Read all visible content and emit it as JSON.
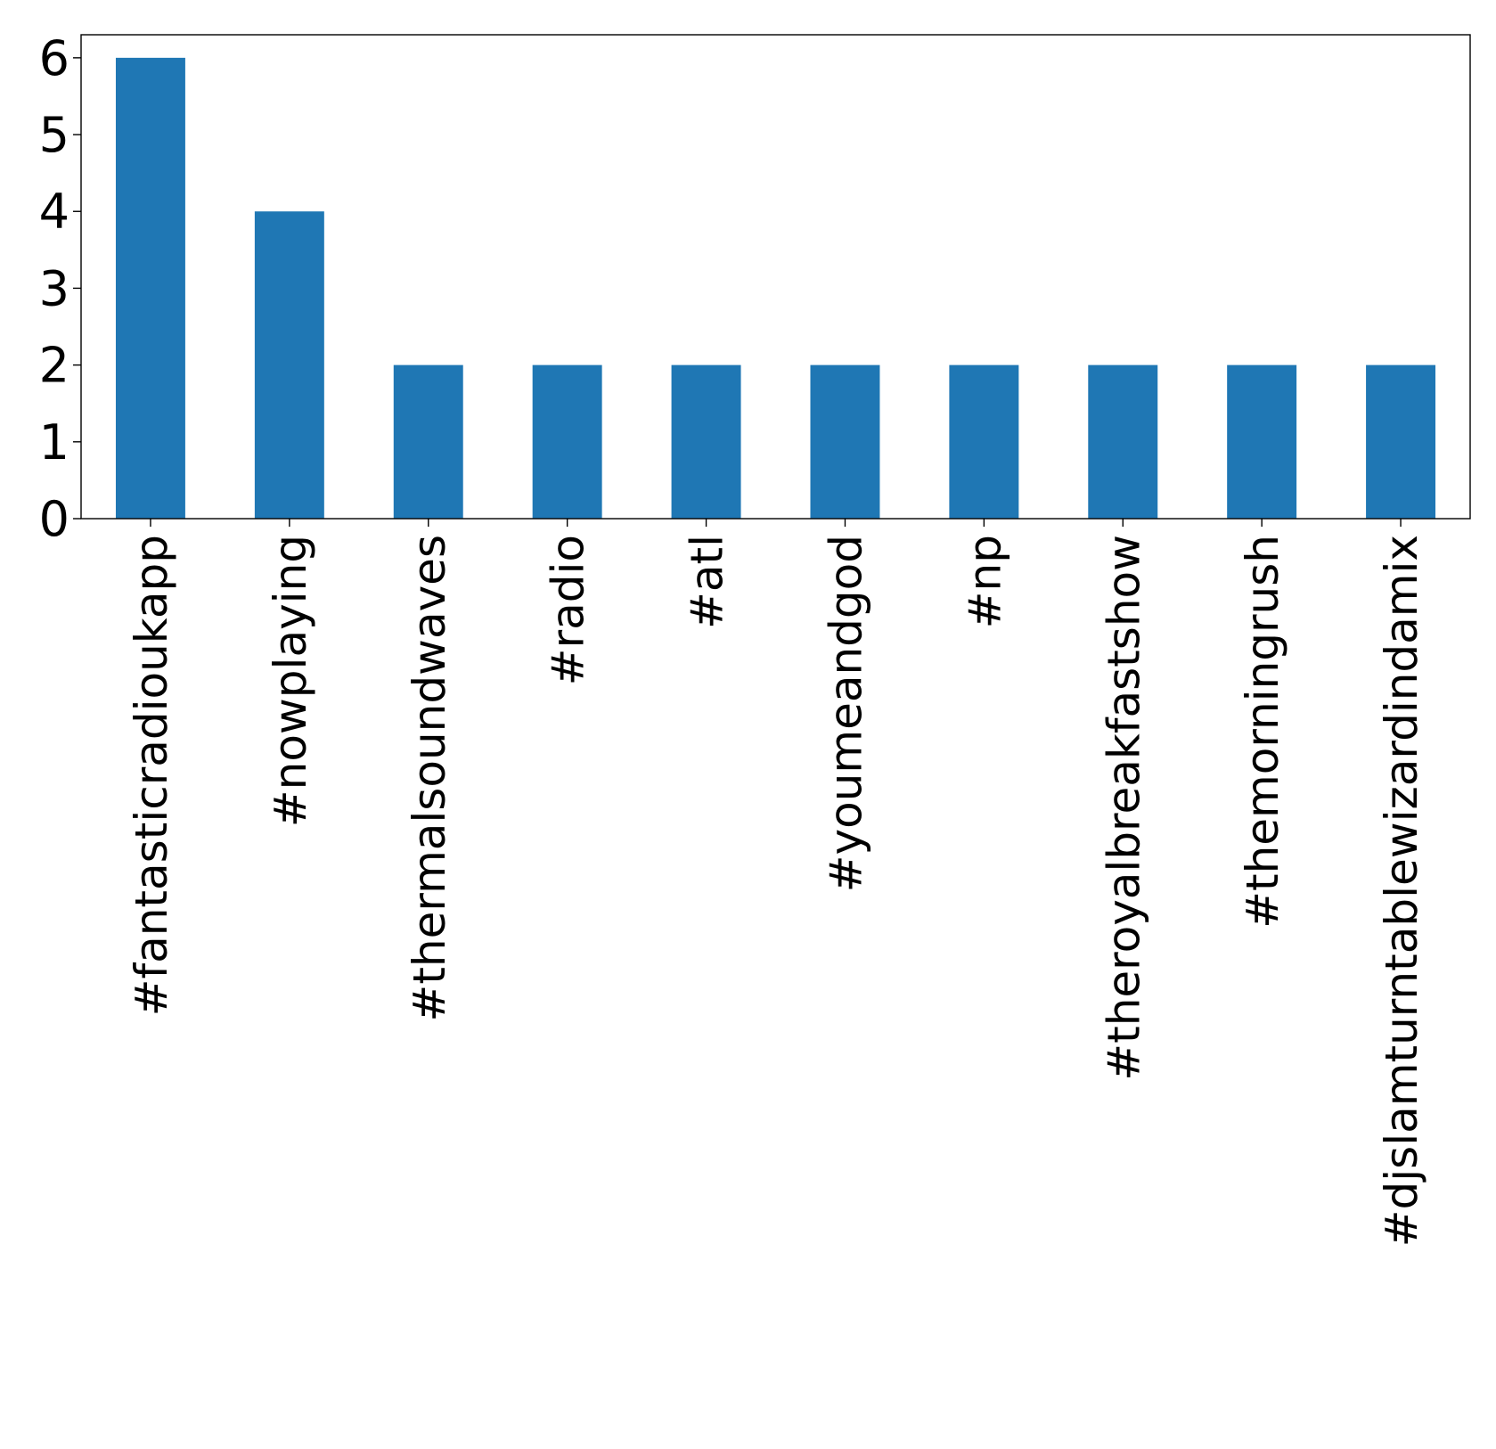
{
  "chart_data": {
    "type": "bar",
    "title": "",
    "xlabel": "",
    "ylabel": "",
    "categories": [
      "#fantasticradioukapp",
      "#nowplaying",
      "#thermalsoundwaves",
      "#radio",
      "#atl",
      "#youmeandgod",
      "#np",
      "#theroyalbreakfastshow",
      "#themorningrush",
      "#djslamturntablewizardindamix"
    ],
    "values": [
      6,
      4,
      2,
      2,
      2,
      2,
      2,
      2,
      2,
      2
    ],
    "ylim": [
      0,
      6.3
    ],
    "yticks": [
      "0",
      "1",
      "2",
      "3",
      "4",
      "5",
      "6"
    ],
    "bar_color": "#1f77b4",
    "grid": false,
    "legend": "none",
    "x_tick_rotation": "vertical"
  }
}
